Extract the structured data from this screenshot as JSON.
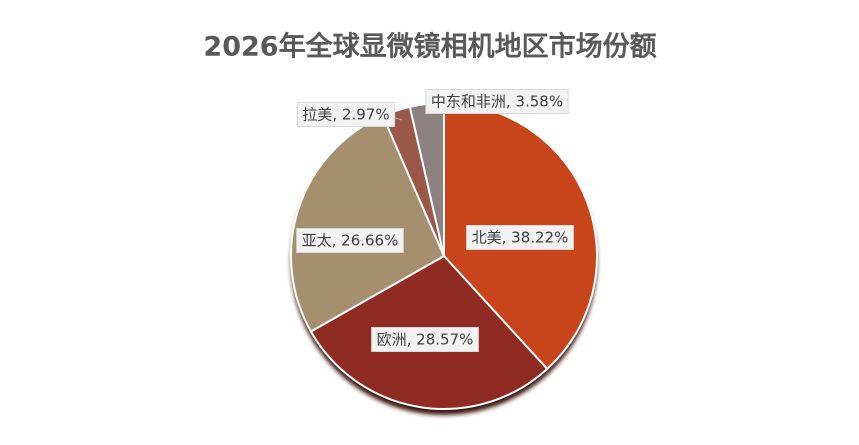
{
  "chart_data": {
    "type": "pie",
    "title": "2026年全球显微镜相机地区市场份额",
    "categories": [
      "北美",
      "欧洲",
      "亚太",
      "拉美",
      "中东和非洲"
    ],
    "values": [
      38.22,
      28.57,
      26.66,
      2.97,
      3.58
    ],
    "value_labels": [
      "北美, 38.22%",
      "欧洲, 28.57%",
      "亚太, 26.66%",
      "拉美, 2.97%",
      "中东和非洲, 3.58%"
    ],
    "colors": [
      "#c8441b",
      "#8f2b22",
      "#a68f6e",
      "#995848",
      "#8c8080"
    ]
  }
}
